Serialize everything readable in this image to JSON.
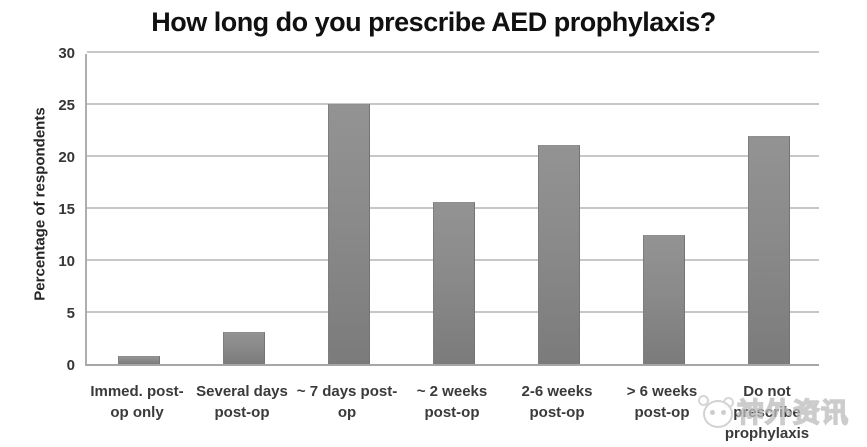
{
  "title": "How long do you prescribe AED prophylaxis?",
  "chart_data": {
    "type": "bar",
    "title": "How long do you prescribe AED prophylaxis?",
    "xlabel": "",
    "ylabel": "Percentage of respondents",
    "ylim": [
      0,
      30
    ],
    "yticks": [
      0,
      5,
      10,
      15,
      20,
      25,
      30
    ],
    "grid": true,
    "legend_position": "none",
    "bar_color": "#878787",
    "categories": [
      "Immed. post-op only",
      "Several days post-op",
      "~ 7 days post-op",
      "~ 2 weeks post-op",
      "2-6 weeks post-op",
      "> 6 weeks post-op",
      "Do not prescribe prophylaxis"
    ],
    "category_lines": [
      [
        "Immed. post-",
        "op only"
      ],
      [
        "Several days",
        "post-op"
      ],
      [
        "~ 7 days post-",
        "op"
      ],
      [
        "~ 2 weeks",
        "post-op"
      ],
      [
        "2-6 weeks",
        "post-op"
      ],
      [
        "> 6 weeks",
        "post-op"
      ],
      [
        "Do not",
        "prescribe",
        "prophylaxis"
      ]
    ],
    "values": [
      0.8,
      3.1,
      25,
      15.6,
      21.1,
      12.4,
      21.9
    ]
  },
  "watermark": {
    "logo_icon": "mascot-logo",
    "text": "神外资讯"
  }
}
